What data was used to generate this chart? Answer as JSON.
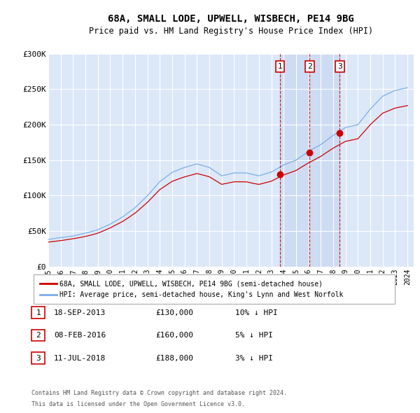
{
  "title": "68A, SMALL LODE, UPWELL, WISBECH, PE14 9BG",
  "subtitle": "Price paid vs. HM Land Registry's House Price Index (HPI)",
  "xlim": [
    1995.0,
    2024.5
  ],
  "ylim": [
    0,
    300000
  ],
  "yticks": [
    0,
    50000,
    100000,
    150000,
    200000,
    250000,
    300000
  ],
  "ytick_labels": [
    "£0",
    "£50K",
    "£100K",
    "£150K",
    "£200K",
    "£250K",
    "£300K"
  ],
  "plot_bg_color": "#dce8f8",
  "grid_color": "#ffffff",
  "hpi_line_color": "#7aaee8",
  "property_line_color": "#cc0000",
  "vline_color": "#cc0000",
  "shade_color": "#c8d8f0",
  "transactions": [
    {
      "label": "1",
      "date": "18-SEP-2013",
      "price": 130000,
      "hpi_diff": "10% ↓ HPI",
      "year": 2013.72
    },
    {
      "label": "2",
      "date": "08-FEB-2016",
      "price": 160000,
      "hpi_diff": "5% ↓ HPI",
      "year": 2016.1
    },
    {
      "label": "3",
      "date": "11-JUL-2018",
      "price": 188000,
      "hpi_diff": "3% ↓ HPI",
      "year": 2018.53
    }
  ],
  "legend_line1": "68A, SMALL LODE, UPWELL, WISBECH, PE14 9BG (semi-detached house)",
  "legend_line2": "HPI: Average price, semi-detached house, King's Lynn and West Norfolk",
  "footer_line1": "Contains HM Land Registry data © Crown copyright and database right 2024.",
  "footer_line2": "This data is licensed under the Open Government Licence v3.0."
}
